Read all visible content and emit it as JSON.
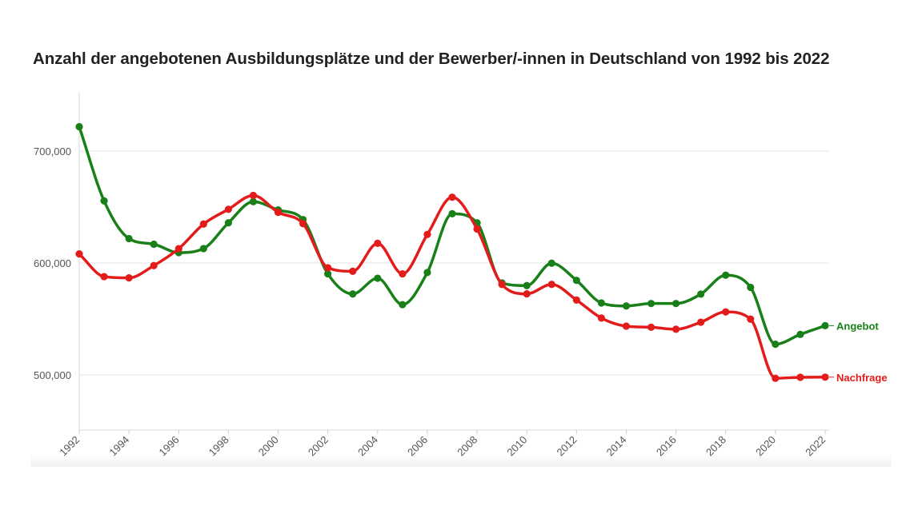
{
  "chart_data": {
    "type": "line",
    "title": "Anzahl der angebotenen Ausbildungsplätze und der Bewerber/-innen in Deutschland von 1992 bis 2022",
    "xlabel": "",
    "ylabel": "",
    "x": [
      1992,
      1993,
      1994,
      1995,
      1996,
      1997,
      1998,
      1999,
      2000,
      2001,
      2002,
      2003,
      2004,
      2005,
      2006,
      2007,
      2008,
      2009,
      2010,
      2011,
      2012,
      2013,
      2014,
      2015,
      2016,
      2017,
      2018,
      2019,
      2020,
      2021,
      2022
    ],
    "xticks": [
      "1992",
      "1994",
      "1996",
      "1998",
      "2000",
      "2002",
      "2004",
      "2006",
      "2008",
      "2010",
      "2012",
      "2014",
      "2016",
      "2018",
      "2020",
      "2022"
    ],
    "yticks": [
      {
        "value": 500000,
        "label": "500,000"
      },
      {
        "value": 600000,
        "label": "600,000"
      },
      {
        "value": 700000,
        "label": "700,000"
      }
    ],
    "xlim": [
      1992,
      2022
    ],
    "ylim": [
      450000,
      755000
    ],
    "grid": "horizontal",
    "series": [
      {
        "name": "Angebot",
        "color": "#198019",
        "values": [
          721800,
          655500,
          621800,
          616800,
          609300,
          612900,
          635900,
          654800,
          647400,
          638800,
          590300,
          572300,
          586400,
          562800,
          591500,
          644000,
          635900,
          582200,
          579800,
          599800,
          584500,
          564300,
          561600,
          563800,
          563800,
          572200,
          589100,
          578200,
          527400,
          536200,
          544000
        ]
      },
      {
        "name": "Nachfrage",
        "color": "#e31b1b",
        "values": [
          608100,
          587800,
          586700,
          597700,
          612800,
          634800,
          648000,
          660400,
          645300,
          635200,
          595700,
          592600,
          617600,
          590300,
          625500,
          658800,
          630400,
          580800,
          572400,
          580900,
          566900,
          550800,
          543600,
          542600,
          540800,
          547100,
          556300,
          549800,
          497000,
          497900,
          498000
        ]
      }
    ]
  }
}
